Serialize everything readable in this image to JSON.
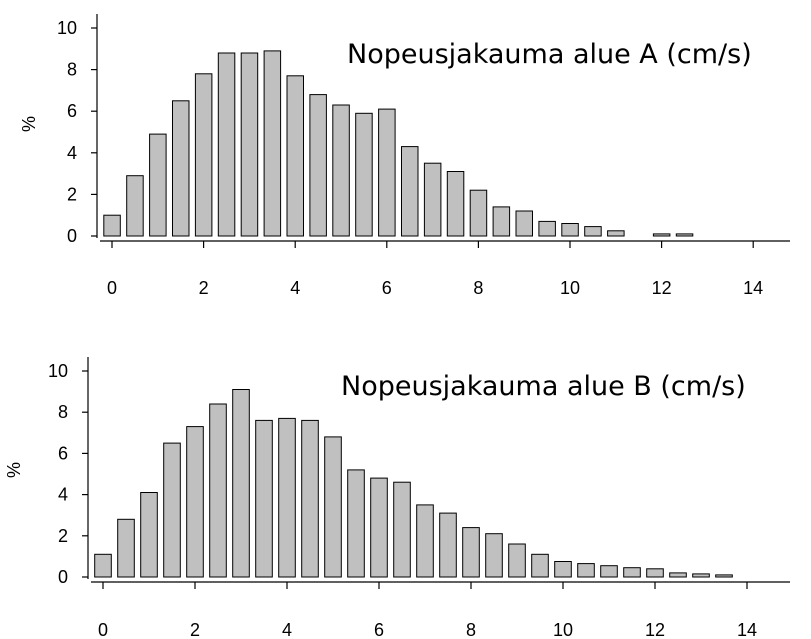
{
  "colors": {
    "bar_fill": "#c0c0c0",
    "bar_stroke": "#000000",
    "axis": "#000000"
  },
  "chart_data": [
    {
      "type": "bar",
      "title": "Nopeusjakauma alue A (cm/s)",
      "ylabel": "%",
      "xlabel": "",
      "ylim": [
        0,
        10
      ],
      "xlim": [
        0,
        14
      ],
      "yticks": [
        "0",
        "2",
        "4",
        "6",
        "8",
        "10"
      ],
      "xticks": [
        "0",
        "2",
        "4",
        "6",
        "8",
        "10",
        "12",
        "14"
      ],
      "bin_width": 0.5,
      "x": [
        0,
        0.5,
        1,
        1.5,
        2,
        2.5,
        3,
        3.5,
        4,
        4.5,
        5,
        5.5,
        6,
        6.5,
        7,
        7.5,
        8,
        8.5,
        9,
        9.5,
        10,
        10.5,
        11,
        11.5,
        12,
        12.5
      ],
      "values": [
        1.0,
        2.9,
        4.9,
        6.5,
        7.8,
        8.8,
        8.8,
        8.9,
        7.7,
        6.8,
        6.3,
        5.9,
        6.1,
        4.3,
        3.5,
        3.1,
        2.2,
        1.4,
        1.2,
        0.7,
        0.6,
        0.45,
        0.25,
        0,
        0.1,
        0.1
      ]
    },
    {
      "type": "bar",
      "title": "Nopeusjakauma alue B (cm/s)",
      "ylabel": "%",
      "xlabel": "",
      "ylim": [
        0,
        10
      ],
      "xlim": [
        0,
        14
      ],
      "yticks": [
        "0",
        "2",
        "4",
        "6",
        "8",
        "10"
      ],
      "xticks": [
        "0",
        "2",
        "4",
        "6",
        "8",
        "10",
        "12",
        "14"
      ],
      "bin_width": 0.5,
      "x": [
        0,
        0.5,
        1,
        1.5,
        2,
        2.5,
        3,
        3.5,
        4,
        4.5,
        5,
        5.5,
        6,
        6.5,
        7,
        7.5,
        8,
        8.5,
        9,
        9.5,
        10,
        10.5,
        11,
        11.5,
        12,
        12.5,
        13,
        13.5
      ],
      "values": [
        1.1,
        2.8,
        4.1,
        6.5,
        7.3,
        8.4,
        9.1,
        7.6,
        7.7,
        7.6,
        6.8,
        5.2,
        4.8,
        4.6,
        3.5,
        3.1,
        2.4,
        2.1,
        1.6,
        1.1,
        0.75,
        0.65,
        0.55,
        0.45,
        0.4,
        0.2,
        0.15,
        0.1
      ]
    }
  ]
}
